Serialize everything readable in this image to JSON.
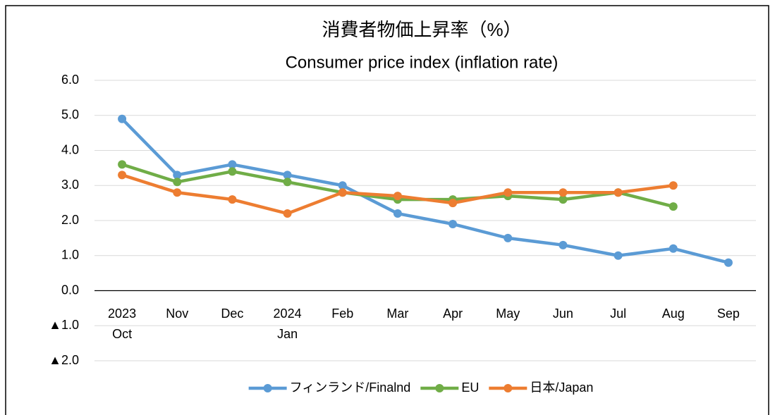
{
  "chart_data": {
    "type": "line",
    "title": "消費者物価上昇率（%）",
    "subtitle": "Consumer price index (inflation rate)",
    "categories": [
      "2023\nOct",
      "Nov",
      "Dec",
      "2024\nJan",
      "Feb",
      "Mar",
      "Apr",
      "May",
      "Jun",
      "Jul",
      "Aug",
      "Sep"
    ],
    "series": [
      {
        "name": "フィンランド/Finalnd",
        "color": "#5b9bd5",
        "values": [
          4.9,
          3.3,
          3.6,
          3.3,
          3.0,
          2.2,
          1.9,
          1.5,
          1.3,
          1.0,
          1.2,
          0.8
        ]
      },
      {
        "name": "EU",
        "color": "#70ad47",
        "values": [
          3.6,
          3.1,
          3.4,
          3.1,
          2.8,
          2.6,
          2.6,
          2.7,
          2.6,
          2.8,
          2.4,
          null
        ]
      },
      {
        "name": "日本/Japan",
        "color": "#ed7d31",
        "values": [
          3.3,
          2.8,
          2.6,
          2.2,
          2.8,
          2.7,
          2.5,
          2.8,
          2.8,
          2.8,
          3.0,
          null
        ]
      }
    ],
    "ylim": [
      -2,
      6
    ],
    "yticks": [
      {
        "value": -2,
        "label": "▲2.0"
      },
      {
        "value": -1,
        "label": "▲1.0"
      },
      {
        "value": 0,
        "label": "0.0"
      },
      {
        "value": 1,
        "label": "1.0"
      },
      {
        "value": 2,
        "label": "2.0"
      },
      {
        "value": 3,
        "label": "3.0"
      },
      {
        "value": 4,
        "label": "4.0"
      },
      {
        "value": 5,
        "label": "5.0"
      },
      {
        "value": 6,
        "label": "6.0"
      }
    ],
    "grid": true,
    "legend": "bottom"
  }
}
